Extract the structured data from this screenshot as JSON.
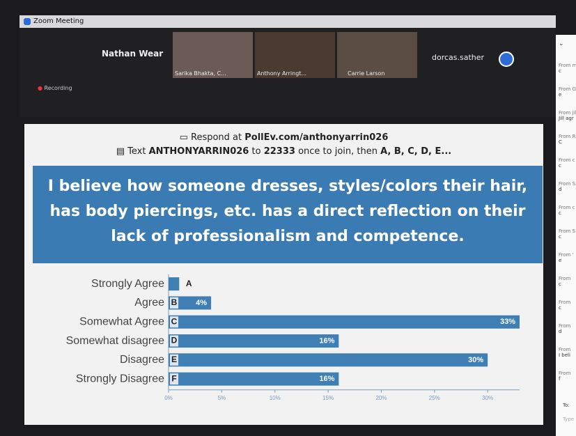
{
  "window": {
    "title": "Zoom Meeting",
    "recording": "Recording",
    "participants": [
      "Nathan Wear",
      "Sarika Bhakta, C...",
      "Anthony Arringt...",
      "Carrie Larson",
      "dorcas.sather"
    ]
  },
  "poll": {
    "respond_prefix": "Respond at",
    "respond_url": "PollEv.com/anthonyarrin026",
    "text_prefix": "Text",
    "text_code": "ANTHONYARRIN026",
    "text_to": "to",
    "text_number": "22333",
    "text_middle": "once to join, then",
    "text_options": "A, B, C, D, E..."
  },
  "chart_data": {
    "type": "bar",
    "orientation": "horizontal",
    "title": "I believe how someone dresses, styles/colors their hair, has body piercings, etc. has a direct reflection on their lack of professionalism and competence.",
    "categories": [
      "Strongly Agree",
      "Agree",
      "Somewhat Agree",
      "Somewhat disagree",
      "Disagree",
      "Strongly Disagree"
    ],
    "letters": [
      "A",
      "B",
      "C",
      "D",
      "E",
      "F"
    ],
    "values": [
      1,
      4,
      33,
      16,
      30,
      16
    ],
    "value_labels": [
      null,
      "4%",
      "33%",
      "16%",
      "30%",
      "16%"
    ],
    "color": "#3f7fb4",
    "xlim": [
      0,
      33
    ],
    "xticks": [
      {
        "value": 0,
        "label": "0%"
      },
      {
        "value": 5,
        "label": "5%"
      },
      {
        "value": 10,
        "label": "10%"
      },
      {
        "value": 15,
        "label": "15%"
      },
      {
        "value": 20,
        "label": "20%"
      },
      {
        "value": 25,
        "label": "25%"
      },
      {
        "value": 30,
        "label": "30%"
      }
    ]
  },
  "chat": {
    "messages": [
      {
        "from": "From m",
        "text": "c"
      },
      {
        "from": "From G",
        "text": "e"
      },
      {
        "from": "From jil",
        "text": "Jill agr"
      },
      {
        "from": "From R",
        "text": "C"
      },
      {
        "from": "From c",
        "text": "c"
      },
      {
        "from": "From S",
        "text": "d"
      },
      {
        "from": "From c",
        "text": "c"
      },
      {
        "from": "From S",
        "text": "c"
      },
      {
        "from": "From '",
        "text": "e"
      },
      {
        "from": "From",
        "text": "c"
      },
      {
        "from": "From",
        "text": "c"
      },
      {
        "from": "From",
        "text": "d"
      },
      {
        "from": "From",
        "text": "I beli"
      },
      {
        "from": "From",
        "text": "f"
      }
    ],
    "to": "To:",
    "placeholder": "Type"
  }
}
